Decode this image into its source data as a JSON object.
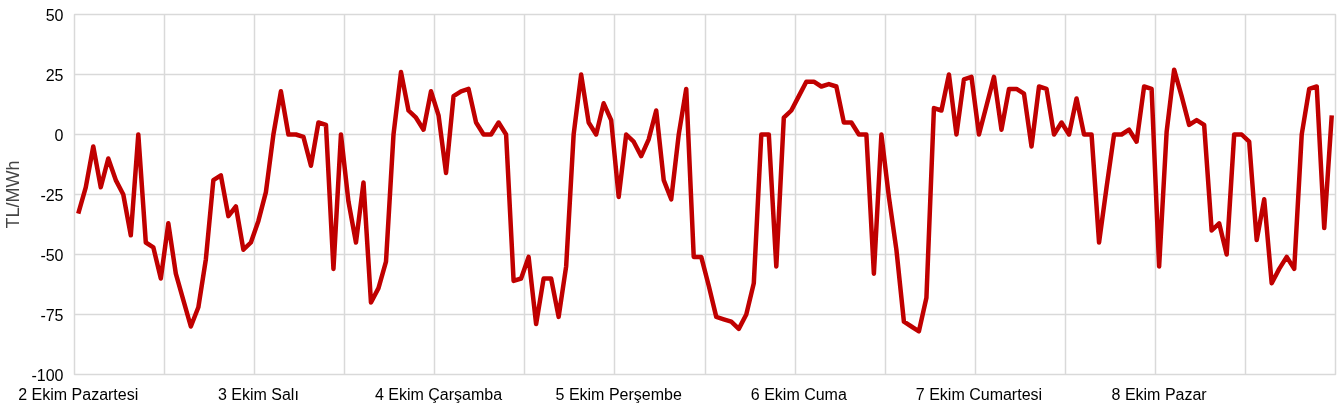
{
  "chart_data": {
    "type": "line",
    "ylabel": "TL/MWh",
    "categories": [
      "2 Ekim Pazartesi",
      null,
      null,
      null,
      null,
      null,
      null,
      null,
      null,
      null,
      null,
      null,
      null,
      null,
      null,
      null,
      null,
      null,
      null,
      null,
      null,
      null,
      null,
      null,
      "3 Ekim Salı",
      null,
      null,
      null,
      null,
      null,
      null,
      null,
      null,
      null,
      null,
      null,
      null,
      null,
      null,
      null,
      null,
      null,
      null,
      null,
      null,
      null,
      null,
      null,
      "4 Ekim Çarşamba",
      null,
      null,
      null,
      null,
      null,
      null,
      null,
      null,
      null,
      null,
      null,
      null,
      null,
      null,
      null,
      null,
      null,
      null,
      null,
      null,
      null,
      null,
      null,
      "5 Ekim Perşembe",
      null,
      null,
      null,
      null,
      null,
      null,
      null,
      null,
      null,
      null,
      null,
      null,
      null,
      null,
      null,
      null,
      null,
      null,
      null,
      null,
      null,
      null,
      null,
      "6 Ekim Cuma",
      null,
      null,
      null,
      null,
      null,
      null,
      null,
      null,
      null,
      null,
      null,
      null,
      null,
      null,
      null,
      null,
      null,
      null,
      null,
      null,
      null,
      null,
      null,
      "7 Ekim Cumartesi",
      null,
      null,
      null,
      null,
      null,
      null,
      null,
      null,
      null,
      null,
      null,
      null,
      null,
      null,
      null,
      null,
      null,
      null,
      null,
      null,
      null,
      null,
      null,
      "8 Ekim Pazar",
      null,
      null,
      null,
      null,
      null,
      null,
      null,
      null,
      null,
      null,
      null,
      null,
      null,
      null,
      null,
      null,
      null,
      null,
      null,
      null,
      null,
      null,
      null
    ],
    "series": [
      {
        "color": "#c00000",
        "values": [
          -33,
          -22,
          -5,
          -22,
          -10,
          -19,
          -25,
          -42,
          0,
          -45,
          -47,
          -60,
          -37,
          -58,
          -69,
          -80,
          -72,
          -52,
          -19,
          -17,
          -34,
          -30,
          -48,
          -45,
          -36,
          -24,
          0,
          18,
          0,
          0,
          -1,
          -13,
          5,
          4,
          -56,
          0,
          -28,
          -45,
          -20,
          -70,
          -64,
          -53,
          0,
          26,
          10,
          7,
          2,
          18,
          8,
          -16,
          16,
          18,
          19,
          5,
          0,
          0,
          5,
          0,
          -61,
          -60,
          -51,
          -79,
          -60,
          -60,
          -76,
          -55,
          0,
          25,
          5,
          0,
          13,
          6,
          -26,
          0,
          -3,
          -9,
          -2,
          10,
          -19,
          -27,
          0,
          19,
          -51,
          -51,
          -63,
          -76,
          -77,
          -78,
          -81,
          -75,
          -62,
          0,
          0,
          -55,
          7,
          10,
          16,
          22,
          22,
          20,
          21,
          20,
          5,
          5,
          0,
          0,
          -58,
          0,
          -26,
          -48,
          -78,
          -80,
          -82,
          -68,
          11,
          10,
          25,
          0,
          23,
          24,
          0,
          12,
          24,
          2,
          19,
          19,
          17,
          -5,
          20,
          19,
          0,
          5,
          0,
          15,
          0,
          0,
          -45,
          -22,
          0,
          0,
          2,
          -3,
          20,
          19,
          -55,
          1,
          27,
          16,
          4,
          6,
          4,
          -40,
          -37,
          -50,
          0,
          0,
          -3,
          -44,
          -27,
          -62,
          -56,
          -51,
          -56,
          0,
          19,
          20,
          -39,
          8
        ]
      }
    ],
    "ylim": [
      -100,
      50
    ],
    "yticks": [
      -100,
      -75,
      -50,
      -25,
      0,
      25,
      50
    ],
    "grid": true,
    "marker": "none",
    "line_style": "solid"
  }
}
